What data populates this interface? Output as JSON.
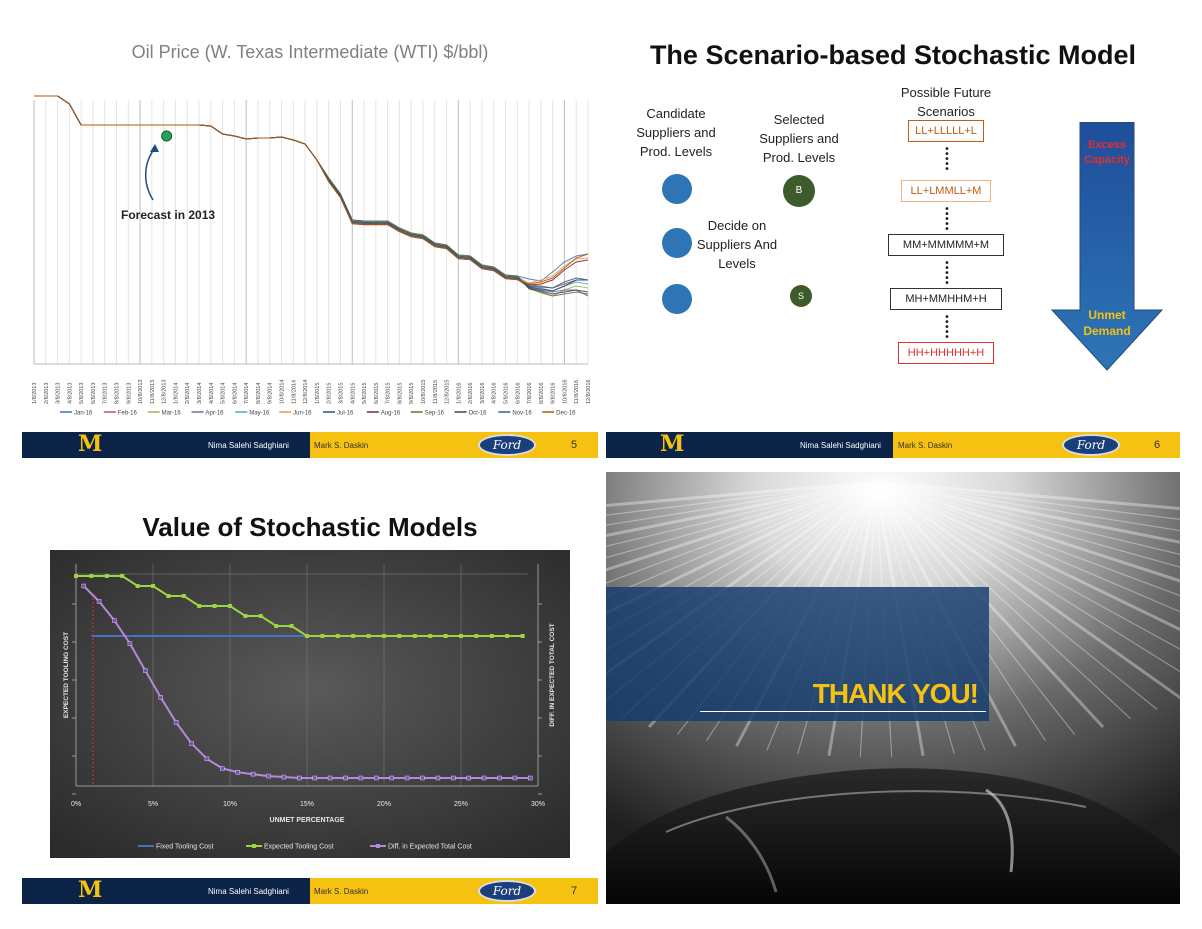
{
  "footer": {
    "author1": "Nima Salehi Sadghiani",
    "author2": "Mark S. Daskin",
    "ford": "Ford",
    "m_logo": "M"
  },
  "slide5": {
    "title": "Oil Price (W. Texas Intermediate (WTI) $/bbl)",
    "annotation": "Forecast in 2013",
    "page": "5",
    "x_ticks": [
      "1/8/2013",
      "2/8/2013",
      "3/8/2013",
      "4/8/2013",
      "5/8/2013",
      "6/8/2013",
      "7/8/2013",
      "8/8/2013",
      "9/8/2013",
      "10/8/2013",
      "11/8/2013",
      "12/8/2013",
      "1/8/2014",
      "2/8/2014",
      "3/8/2014",
      "4/8/2014",
      "5/8/2014",
      "6/8/2014",
      "7/8/2014",
      "8/8/2014",
      "9/8/2014",
      "10/8/2014",
      "11/8/2014",
      "12/8/2014",
      "1/8/2015",
      "2/8/2015",
      "3/8/2015",
      "4/8/2015",
      "5/8/2015",
      "6/8/2015",
      "7/8/2015",
      "8/8/2015",
      "9/8/2015",
      "10/8/2015",
      "11/8/2015",
      "12/8/2015",
      "1/8/2016",
      "2/8/2016",
      "3/8/2016",
      "4/8/2016",
      "5/8/2016",
      "6/8/2016",
      "7/8/2016",
      "8/8/2016",
      "9/8/2016",
      "10/8/2016",
      "11/8/2016",
      "12/8/2016"
    ],
    "legend": [
      "Jan-16",
      "Feb-16",
      "Mar-16",
      "Apr-16",
      "May-16",
      "Jun-16",
      "Jul-16",
      "Aug-16",
      "Sep-16",
      "Oct-16",
      "Nov-16",
      "Dec-16"
    ],
    "legend_colors": [
      "#4472c4",
      "#c0504d",
      "#9bbb59",
      "#8064a2",
      "#4bacc6",
      "#f79646",
      "#2c4d75",
      "#772c2a",
      "#5f7530",
      "#4d3b62",
      "#276a7c",
      "#b65708"
    ]
  },
  "slide6": {
    "title": "The Scenario-based Stochastic Model",
    "page": "6",
    "col1": "Candidate Suppliers and Prod. Levels",
    "col2": "Selected Suppliers and Prod. Levels",
    "col3": "Possible  Future Scenarios",
    "decide": "Decide on Suppliers And Levels",
    "node_b": "B",
    "node_s": "S",
    "arrow_top": "Excess Capacity",
    "arrow_bottom": "Unmet Demand",
    "scenarios": [
      {
        "text": "LL+LLLLL+L",
        "color": "#c55a11",
        "border": "#c55a11"
      },
      {
        "text": "LL+LMMLL+M",
        "color": "#c55a11",
        "border": "#f4b183"
      },
      {
        "text": "MM+MMMMM+M",
        "color": "#222222",
        "border": "#333333"
      },
      {
        "text": "MH+MMHHM+H",
        "color": "#222222",
        "border": "#333333"
      },
      {
        "text": "HH+HHHHH+H",
        "color": "#e03030",
        "border": "#e03030"
      }
    ]
  },
  "slide7": {
    "title": "Value of Stochastic Models",
    "page": "7",
    "chart_data": {
      "type": "line",
      "xlabel": "UNMET PERCENTAGE",
      "ylabel": "EXPECTED TOOLING COST",
      "y2label": "DIFF. IN EXPECTED TOTAL COST",
      "x_ticks": [
        "0%",
        "5%",
        "10%",
        "15%",
        "20%",
        "25%",
        "30%"
      ],
      "x": [
        0,
        1,
        2,
        3,
        4,
        5,
        6,
        7,
        8,
        9,
        10,
        11,
        12,
        13,
        14,
        15,
        16,
        17,
        18,
        19,
        20,
        21,
        22,
        23,
        24,
        25,
        26,
        27,
        28,
        29
      ],
      "series": [
        {
          "name": "Fixed Tooling Cost",
          "color": "#4472c4",
          "values": [
            0.79,
            0.79,
            0.79,
            0.79,
            0.79,
            0.79,
            0.79,
            0.79,
            0.79,
            0.79,
            0.79,
            0.79,
            0.79,
            0.79,
            0.79,
            0.79,
            0.79,
            0.79,
            0.79,
            0.79,
            0.79,
            0.79,
            0.79,
            0.79,
            0.79,
            0.79,
            0.79,
            0.79,
            0.79,
            0.79
          ]
        },
        {
          "name": "Expected Tooling Cost",
          "color": "#9bd642",
          "values": [
            1.0,
            1.0,
            1.0,
            1.0,
            0.98,
            0.98,
            0.96,
            0.96,
            0.94,
            0.94,
            0.94,
            0.92,
            0.92,
            0.9,
            0.9,
            0.88,
            0.88,
            0.88,
            0.88,
            0.88,
            0.88,
            0.88,
            0.88,
            0.88,
            0.88,
            0.88,
            0.88,
            0.88,
            0.88,
            0.88
          ]
        },
        {
          "name": "Diff. in Expected Total Cost",
          "color": "#b48ad8",
          "values": [
            1.0,
            0.92,
            0.82,
            0.7,
            0.56,
            0.42,
            0.29,
            0.18,
            0.1,
            0.05,
            0.03,
            0.02,
            0.01,
            0.005,
            0.0,
            0.0,
            0.0,
            0.0,
            0.0,
            0.0,
            0.0,
            0.0,
            0.0,
            0.0,
            0.0,
            0.0,
            0.0,
            0.0,
            0.0,
            0.0
          ]
        }
      ]
    }
  },
  "slide8": {
    "thank_you": "THANK YOU!"
  }
}
